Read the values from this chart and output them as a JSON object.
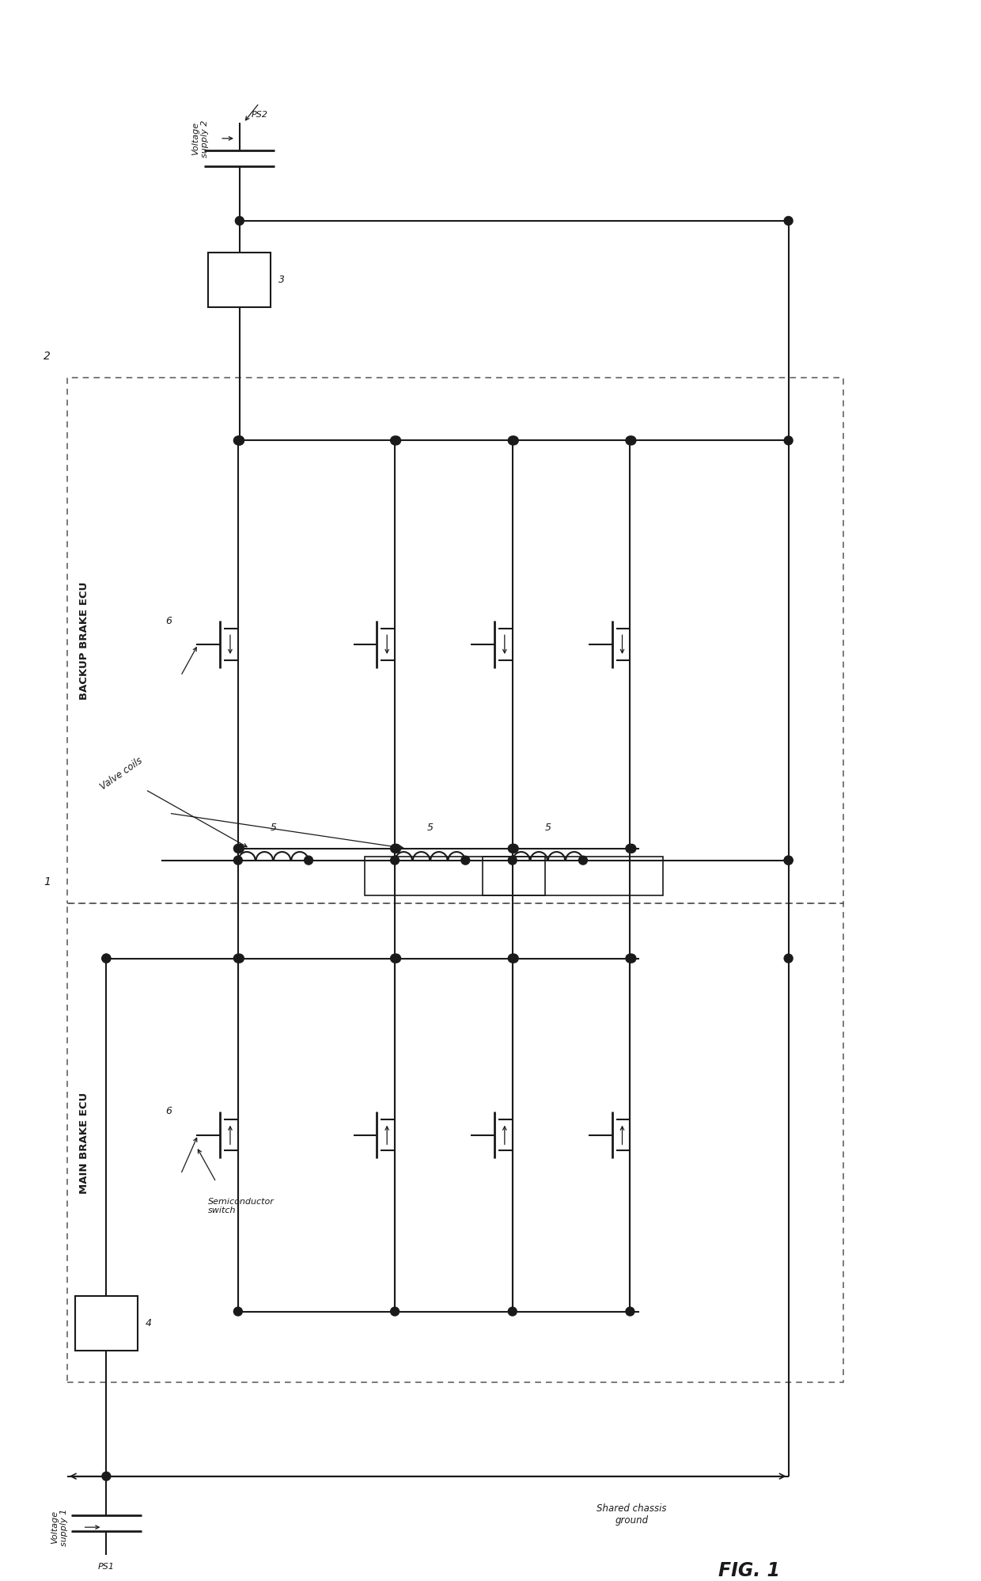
{
  "bg_color": "#ffffff",
  "line_color": "#1a1a1a",
  "fig_width": 12.4,
  "fig_height": 19.97,
  "labels": {
    "voltage_supply_1": "Voltage\nsupply 1",
    "voltage_supply_2": "Voltage\nsupply 2",
    "ps1": "PS1",
    "ps2": "PS2",
    "ref3": "3",
    "ref4": "4",
    "ref6_main": "6",
    "ref6_backup": "6",
    "ref5": "5",
    "valve_coils": "Valve coils",
    "semiconductor_switch": "Semiconductor\nswitch",
    "main_brake_ecu": "MAIN BRAKE ECU",
    "backup_brake_ecu": "BACKUP BRAKE ECU",
    "shared_chassis_ground": "Shared chassis\nground",
    "fig_label": "FIG. 1",
    "ref1": "1",
    "ref2": "2"
  }
}
